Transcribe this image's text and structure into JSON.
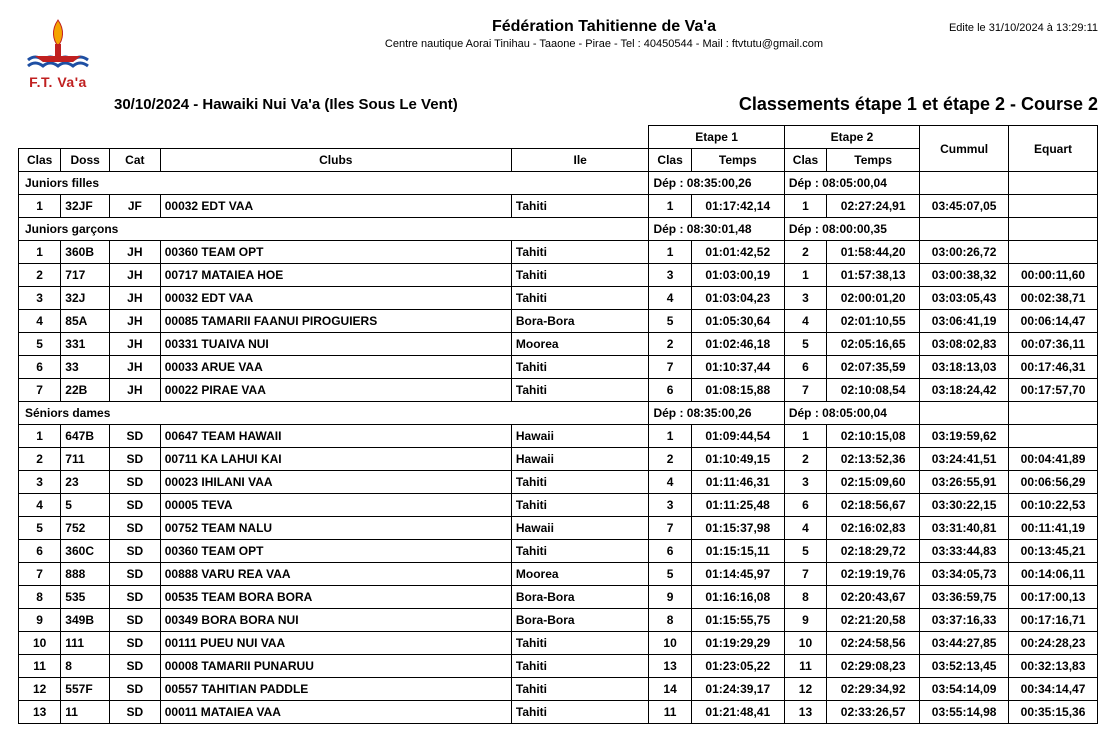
{
  "meta": {
    "edit_date": "Edite le 31/10/2024 à 13:29:11",
    "fed_title": "Fédération Tahitienne de Va'a",
    "fed_sub": "Centre nautique Aorai Tinihau - Taaone - Pirae - Tel : 40450544 - Mail : ftvtutu@gmail.com",
    "event_left": "30/10/2024 - Hawaiki Nui Va'a (Iles Sous Le Vent)",
    "event_right": "Classements étape 1 et étape 2 - Course 2",
    "logo_label": "F.T. Va'a"
  },
  "headers": {
    "clas": "Clas",
    "doss": "Doss",
    "cat": "Cat",
    "clubs": "Clubs",
    "ile": "Ile",
    "etape1": "Etape 1",
    "etape2": "Etape 2",
    "cummul": "Cummul",
    "equart": "Equart",
    "temps": "Temps"
  },
  "dep_label": "Dép :",
  "sections": [
    {
      "label": "Juniors filles",
      "dep1": "08:35:00,26",
      "dep2": "08:05:00,04",
      "rows": [
        {
          "clas": "1",
          "doss": "32JF",
          "cat": "JF",
          "club": "00032 EDT VAA",
          "ile": "Tahiti",
          "e1c": "1",
          "e1t": "01:17:42,14",
          "e2c": "1",
          "e2t": "02:27:24,91",
          "cum": "03:45:07,05",
          "eq": ""
        }
      ]
    },
    {
      "label": "Juniors garçons",
      "dep1": "08:30:01,48",
      "dep2": "08:00:00,35",
      "rows": [
        {
          "clas": "1",
          "doss": "360B",
          "cat": "JH",
          "club": "00360 TEAM OPT",
          "ile": "Tahiti",
          "e1c": "1",
          "e1t": "01:01:42,52",
          "e2c": "2",
          "e2t": "01:58:44,20",
          "cum": "03:00:26,72",
          "eq": ""
        },
        {
          "clas": "2",
          "doss": "717",
          "cat": "JH",
          "club": "00717 MATAIEA HOE",
          "ile": "Tahiti",
          "e1c": "3",
          "e1t": "01:03:00,19",
          "e2c": "1",
          "e2t": "01:57:38,13",
          "cum": "03:00:38,32",
          "eq": "00:00:11,60"
        },
        {
          "clas": "3",
          "doss": "32J",
          "cat": "JH",
          "club": "00032 EDT VAA",
          "ile": "Tahiti",
          "e1c": "4",
          "e1t": "01:03:04,23",
          "e2c": "3",
          "e2t": "02:00:01,20",
          "cum": "03:03:05,43",
          "eq": "00:02:38,71"
        },
        {
          "clas": "4",
          "doss": "85A",
          "cat": "JH",
          "club": "00085 TAMARII FAANUI PIROGUIERS",
          "ile": "Bora-Bora",
          "e1c": "5",
          "e1t": "01:05:30,64",
          "e2c": "4",
          "e2t": "02:01:10,55",
          "cum": "03:06:41,19",
          "eq": "00:06:14,47"
        },
        {
          "clas": "5",
          "doss": "331",
          "cat": "JH",
          "club": "00331 TUAIVA NUI",
          "ile": "Moorea",
          "e1c": "2",
          "e1t": "01:02:46,18",
          "e2c": "5",
          "e2t": "02:05:16,65",
          "cum": "03:08:02,83",
          "eq": "00:07:36,11"
        },
        {
          "clas": "6",
          "doss": "33",
          "cat": "JH",
          "club": "00033 ARUE VAA",
          "ile": "Tahiti",
          "e1c": "7",
          "e1t": "01:10:37,44",
          "e2c": "6",
          "e2t": "02:07:35,59",
          "cum": "03:18:13,03",
          "eq": "00:17:46,31"
        },
        {
          "clas": "7",
          "doss": "22B",
          "cat": "JH",
          "club": "00022 PIRAE VAA",
          "ile": "Tahiti",
          "e1c": "6",
          "e1t": "01:08:15,88",
          "e2c": "7",
          "e2t": "02:10:08,54",
          "cum": "03:18:24,42",
          "eq": "00:17:57,70"
        }
      ]
    },
    {
      "label": "Séniors dames",
      "dep1": "08:35:00,26",
      "dep2": "08:05:00,04",
      "rows": [
        {
          "clas": "1",
          "doss": "647B",
          "cat": "SD",
          "club": "00647 TEAM HAWAII",
          "ile": "Hawaii",
          "e1c": "1",
          "e1t": "01:09:44,54",
          "e2c": "1",
          "e2t": "02:10:15,08",
          "cum": "03:19:59,62",
          "eq": ""
        },
        {
          "clas": "2",
          "doss": "711",
          "cat": "SD",
          "club": "00711 KA LAHUI KAI",
          "ile": "Hawaii",
          "e1c": "2",
          "e1t": "01:10:49,15",
          "e2c": "2",
          "e2t": "02:13:52,36",
          "cum": "03:24:41,51",
          "eq": "00:04:41,89"
        },
        {
          "clas": "3",
          "doss": "23",
          "cat": "SD",
          "club": "00023 IHILANI VAA",
          "ile": "Tahiti",
          "e1c": "4",
          "e1t": "01:11:46,31",
          "e2c": "3",
          "e2t": "02:15:09,60",
          "cum": "03:26:55,91",
          "eq": "00:06:56,29"
        },
        {
          "clas": "4",
          "doss": "5",
          "cat": "SD",
          "club": "00005 TEVA",
          "ile": "Tahiti",
          "e1c": "3",
          "e1t": "01:11:25,48",
          "e2c": "6",
          "e2t": "02:18:56,67",
          "cum": "03:30:22,15",
          "eq": "00:10:22,53"
        },
        {
          "clas": "5",
          "doss": "752",
          "cat": "SD",
          "club": "00752 TEAM NALU",
          "ile": "Hawaii",
          "e1c": "7",
          "e1t": "01:15:37,98",
          "e2c": "4",
          "e2t": "02:16:02,83",
          "cum": "03:31:40,81",
          "eq": "00:11:41,19"
        },
        {
          "clas": "6",
          "doss": "360C",
          "cat": "SD",
          "club": "00360 TEAM OPT",
          "ile": "Tahiti",
          "e1c": "6",
          "e1t": "01:15:15,11",
          "e2c": "5",
          "e2t": "02:18:29,72",
          "cum": "03:33:44,83",
          "eq": "00:13:45,21"
        },
        {
          "clas": "7",
          "doss": "888",
          "cat": "SD",
          "club": "00888 VARU REA VAA",
          "ile": "Moorea",
          "e1c": "5",
          "e1t": "01:14:45,97",
          "e2c": "7",
          "e2t": "02:19:19,76",
          "cum": "03:34:05,73",
          "eq": "00:14:06,11"
        },
        {
          "clas": "8",
          "doss": "535",
          "cat": "SD",
          "club": "00535 TEAM BORA BORA",
          "ile": "Bora-Bora",
          "e1c": "9",
          "e1t": "01:16:16,08",
          "e2c": "8",
          "e2t": "02:20:43,67",
          "cum": "03:36:59,75",
          "eq": "00:17:00,13"
        },
        {
          "clas": "9",
          "doss": "349B",
          "cat": "SD",
          "club": "00349 BORA BORA NUI",
          "ile": "Bora-Bora",
          "e1c": "8",
          "e1t": "01:15:55,75",
          "e2c": "9",
          "e2t": "02:21:20,58",
          "cum": "03:37:16,33",
          "eq": "00:17:16,71"
        },
        {
          "clas": "10",
          "doss": "111",
          "cat": "SD",
          "club": "00111 PUEU NUI VAA",
          "ile": "Tahiti",
          "e1c": "10",
          "e1t": "01:19:29,29",
          "e2c": "10",
          "e2t": "02:24:58,56",
          "cum": "03:44:27,85",
          "eq": "00:24:28,23"
        },
        {
          "clas": "11",
          "doss": "8",
          "cat": "SD",
          "club": "00008 TAMARII PUNARUU",
          "ile": "Tahiti",
          "e1c": "13",
          "e1t": "01:23:05,22",
          "e2c": "11",
          "e2t": "02:29:08,23",
          "cum": "03:52:13,45",
          "eq": "00:32:13,83"
        },
        {
          "clas": "12",
          "doss": "557F",
          "cat": "SD",
          "club": "00557 TAHITIAN PADDLE",
          "ile": "Tahiti",
          "e1c": "14",
          "e1t": "01:24:39,17",
          "e2c": "12",
          "e2t": "02:29:34,92",
          "cum": "03:54:14,09",
          "eq": "00:34:14,47"
        },
        {
          "clas": "13",
          "doss": "11",
          "cat": "SD",
          "club": "00011 MATAIEA VAA",
          "ile": "Tahiti",
          "e1c": "11",
          "e1t": "01:21:48,41",
          "e2c": "13",
          "e2t": "02:33:26,57",
          "cum": "03:55:14,98",
          "eq": "00:35:15,36"
        }
      ]
    }
  ],
  "style": {
    "border_color": "#000000",
    "text_color": "#000000",
    "accent_color": "#c02020",
    "flame_color": "#f5a300"
  }
}
